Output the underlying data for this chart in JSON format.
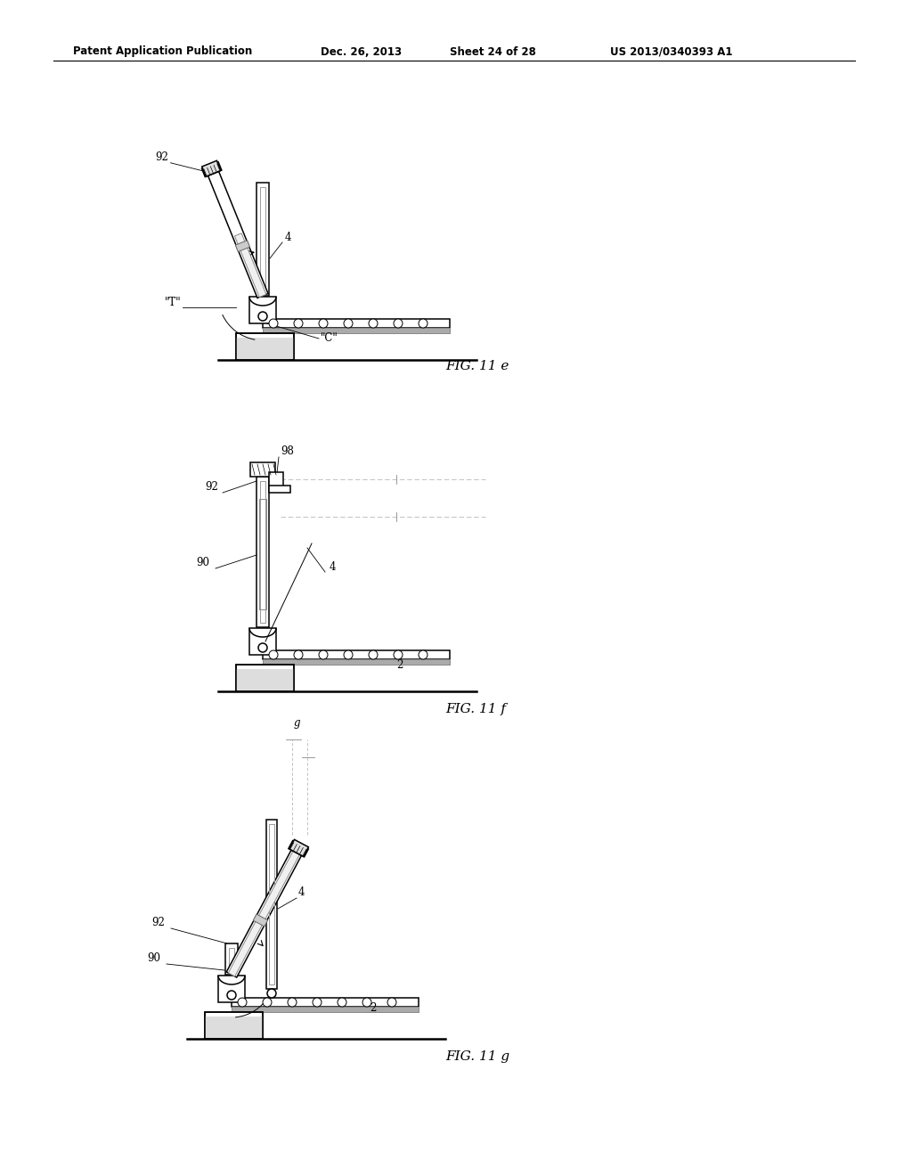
{
  "background_color": "#ffffff",
  "header_text": "Patent Application Publication",
  "header_date": "Dec. 26, 2013",
  "header_sheet": "Sheet 24 of 28",
  "header_patent": "US 2013/0340393 A1",
  "fig_labels": [
    "FIG. 11 e",
    "FIG. 11 f",
    "FIG. 11 g"
  ],
  "line_color": "#000000",
  "gray_fill": "#cccccc",
  "dark_gray": "#888888",
  "light_line": "#aaaaaa"
}
